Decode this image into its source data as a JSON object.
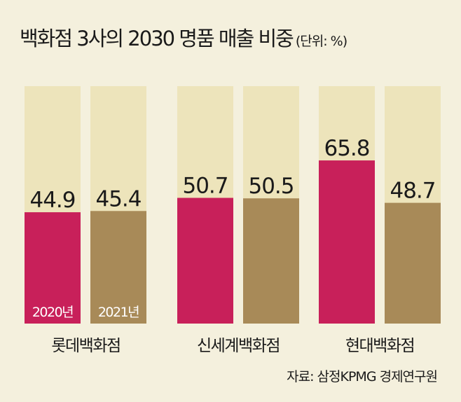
{
  "chart_data": {
    "type": "bar",
    "title": "백화점 3사의 2030 명품 매출 비중",
    "unit": "(단위: %)",
    "categories": [
      "롯데백화점",
      "신세계백화점",
      "현대백화점"
    ],
    "series": [
      {
        "name": "2020년",
        "color": "#c8205a",
        "values": [
          44.9,
          50.7,
          65.8
        ]
      },
      {
        "name": "2021년",
        "color": "#a88a58",
        "values": [
          45.4,
          50.5,
          48.7
        ]
      }
    ],
    "value_labels": [
      [
        "44.9",
        "50.7",
        "65.8"
      ],
      [
        "45.4",
        "50.5",
        "48.7"
      ]
    ],
    "track_color": "#ede4bb",
    "source": "자료: 삼정KPMG 경제연구원"
  }
}
